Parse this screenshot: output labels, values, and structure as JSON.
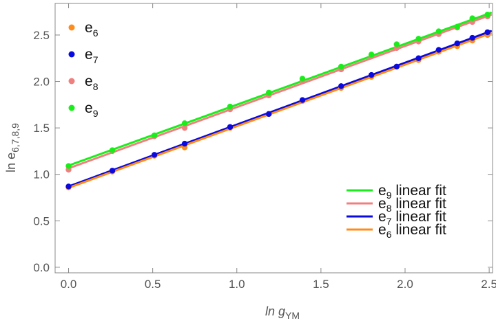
{
  "chart_data": {
    "type": "scatter",
    "title": "",
    "xlabel": {
      "main": "ln g",
      "sub": "YM"
    },
    "ylabel": {
      "main": "ln e",
      "sub": "6,7,8,9"
    },
    "xlim": [
      -0.08,
      2.52
    ],
    "ylim": [
      -0.06,
      2.84
    ],
    "xticks": [
      0.0,
      0.5,
      1.0,
      1.5,
      2.0,
      2.5
    ],
    "xtick_labels": [
      "0.0",
      "0.5",
      "1.0",
      "1.5",
      "2.0",
      "2.5"
    ],
    "yticks": [
      0.0,
      0.5,
      1.0,
      1.5,
      2.0,
      2.5
    ],
    "ytick_labels": [
      "0.0",
      "0.5",
      "1.0",
      "1.5",
      "2.0",
      "2.5"
    ],
    "grid": false,
    "series": [
      {
        "name": "e",
        "sub": "6",
        "color": "#ff8c1a",
        "x": [
          0.0,
          0.26,
          0.51,
          0.69,
          0.96,
          1.19,
          1.39,
          1.62,
          1.8,
          1.95,
          2.08,
          2.2,
          2.31,
          2.4,
          2.49
        ],
        "y": [
          0.86,
          1.03,
          1.2,
          1.29,
          1.5,
          1.65,
          1.79,
          1.93,
          2.05,
          2.16,
          2.23,
          2.32,
          2.38,
          2.44,
          2.5
        ]
      },
      {
        "name": "e",
        "sub": "7",
        "color": "#0a0ae0",
        "x": [
          0.0,
          0.26,
          0.51,
          0.69,
          0.96,
          1.19,
          1.39,
          1.62,
          1.8,
          1.95,
          2.08,
          2.2,
          2.31,
          2.4,
          2.49
        ],
        "y": [
          0.87,
          1.04,
          1.21,
          1.33,
          1.51,
          1.65,
          1.8,
          1.95,
          2.07,
          2.16,
          2.25,
          2.34,
          2.41,
          2.47,
          2.53
        ]
      },
      {
        "name": "e",
        "sub": "8",
        "color": "#f08080",
        "x": [
          0.0,
          0.26,
          0.51,
          0.69,
          0.96,
          1.19,
          1.39,
          1.62,
          1.8,
          1.95,
          2.08,
          2.2,
          2.31,
          2.4,
          2.49
        ],
        "y": [
          1.05,
          1.25,
          1.41,
          1.5,
          1.7,
          1.85,
          2.01,
          2.13,
          2.27,
          2.36,
          2.43,
          2.51,
          2.58,
          2.64,
          2.7
        ]
      },
      {
        "name": "e",
        "sub": "9",
        "color": "#1aee1a",
        "x": [
          0.0,
          0.26,
          0.51,
          0.69,
          0.96,
          1.19,
          1.39,
          1.62,
          1.8,
          1.95,
          2.08,
          2.2,
          2.31,
          2.4,
          2.49
        ],
        "y": [
          1.09,
          1.26,
          1.42,
          1.55,
          1.73,
          1.88,
          2.03,
          2.16,
          2.29,
          2.4,
          2.46,
          2.54,
          2.59,
          2.68,
          2.72
        ]
      }
    ],
    "fits": [
      {
        "name": "e",
        "sub": "9",
        "label": "linear fit",
        "color": "#1aee1a",
        "intercept": 1.095,
        "slope": 0.655
      },
      {
        "name": "e",
        "sub": "8",
        "label": "linear fit",
        "color": "#f08080",
        "intercept": 1.065,
        "slope": 0.658
      },
      {
        "name": "e",
        "sub": "7",
        "label": "linear fit",
        "color": "#0a0ae0",
        "intercept": 0.87,
        "slope": 0.666
      },
      {
        "name": "e",
        "sub": "6",
        "label": "linear fit",
        "color": "#ff8c1a",
        "intercept": 0.855,
        "slope": 0.663
      }
    ]
  }
}
